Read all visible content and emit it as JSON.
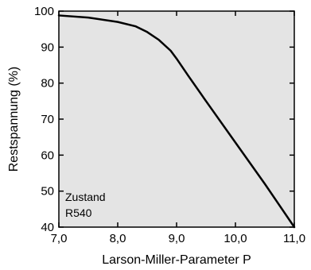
{
  "chart_data": {
    "type": "line",
    "xlabel": "Larson-Miller-Parameter  P",
    "ylabel": "Restspannung (%)",
    "xlim": [
      7.0,
      11.0
    ],
    "ylim": [
      40,
      100
    ],
    "x_ticks": [
      "7,0",
      "8,0",
      "9,0",
      "10,0",
      "11,0"
    ],
    "y_ticks": [
      "40",
      "50",
      "60",
      "70",
      "80",
      "90",
      "100"
    ],
    "annotation": [
      "Zustand",
      "R540"
    ],
    "grid": false,
    "plot_background": "#e4e4e4",
    "line_color": "#000000",
    "series": [
      {
        "x": [
          7.0,
          7.5,
          8.0,
          8.3,
          8.5,
          8.7,
          8.9,
          9.0,
          9.2,
          9.5,
          10.0,
          10.5,
          11.0
        ],
        "y": [
          98.8,
          98.2,
          97.0,
          95.8,
          94.2,
          92.0,
          89.0,
          86.8,
          82.0,
          75.0,
          63.5,
          52.0,
          40.0
        ]
      }
    ]
  }
}
